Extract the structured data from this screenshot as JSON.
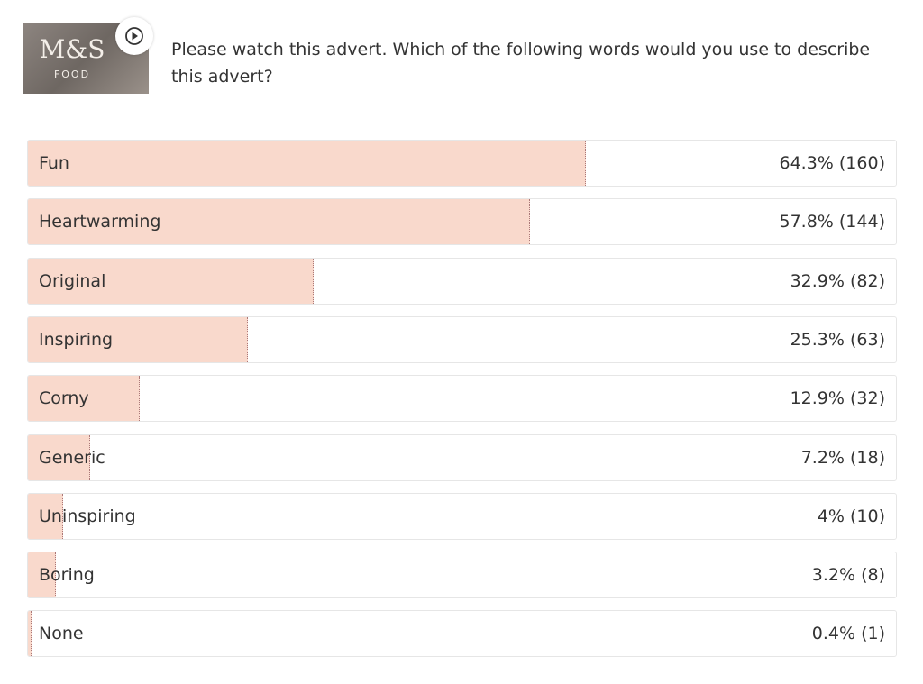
{
  "thumbnail": {
    "brand": "M&S",
    "sub": "FOOD"
  },
  "chart_data": {
    "type": "bar",
    "orientation": "horizontal",
    "title": "Please watch this advert. Which of the following words would you use to describe this advert?",
    "categories": [
      "Fun",
      "Heartwarming",
      "Original",
      "Inspiring",
      "Corny",
      "Generic",
      "Uninspiring",
      "Boring",
      "None"
    ],
    "values": [
      64.3,
      57.8,
      32.9,
      25.3,
      12.9,
      7.2,
      4,
      3.2,
      0.4
    ],
    "value_labels": [
      "64.3% (160)",
      "57.8% (144)",
      "32.9% (82)",
      "25.3% (63)",
      "12.9% (32)",
      "7.2% (18)",
      "4% (10)",
      "3.2% (8)",
      "0.4% (1)"
    ],
    "color": "#f9d9cc",
    "xlim": [
      0,
      100
    ]
  }
}
